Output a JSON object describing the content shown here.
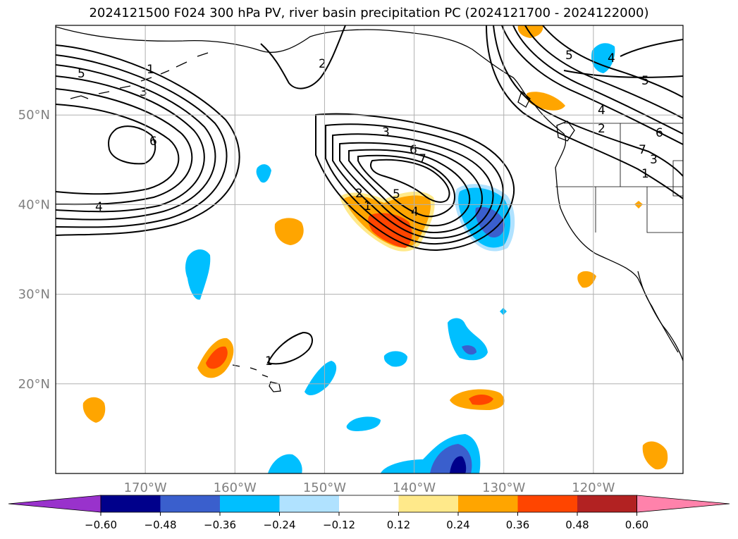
{
  "title": "2024121500 F024 300 hPa PV, river basin precipitation PC (2024121700 - 2024122000)",
  "map": {
    "lat_range": [
      10,
      60
    ],
    "lon_range": [
      -180,
      -110
    ],
    "lat_ticks": [
      {
        "value": 50,
        "label": "50°N"
      },
      {
        "value": 40,
        "label": "40°N"
      },
      {
        "value": 30,
        "label": "30°N"
      },
      {
        "value": 20,
        "label": "20°N"
      }
    ],
    "lon_ticks": [
      {
        "value": -170,
        "label": "170°W"
      },
      {
        "value": -160,
        "label": "160°W"
      },
      {
        "value": -150,
        "label": "150°W"
      },
      {
        "value": -140,
        "label": "140°W"
      },
      {
        "value": -130,
        "label": "130°W"
      },
      {
        "value": -120,
        "label": "120°W"
      }
    ],
    "grid": true
  },
  "colorbar": {
    "colors": [
      "#9932cc",
      "#00008b",
      "#3a5fcd",
      "#00bfff",
      "#b0e2ff",
      "#ffffff",
      "#ffe98a",
      "#ffa500",
      "#ff4500",
      "#b22222",
      "#ff82ab"
    ],
    "labels": [
      "−0.60",
      "−0.48",
      "−0.36",
      "−0.24",
      "−0.12",
      "0.12",
      "0.24",
      "0.36",
      "0.48",
      "0.60"
    ]
  },
  "pv_contour_labels": [
    "1",
    "2",
    "3",
    "4",
    "5",
    "6",
    "7"
  ]
}
